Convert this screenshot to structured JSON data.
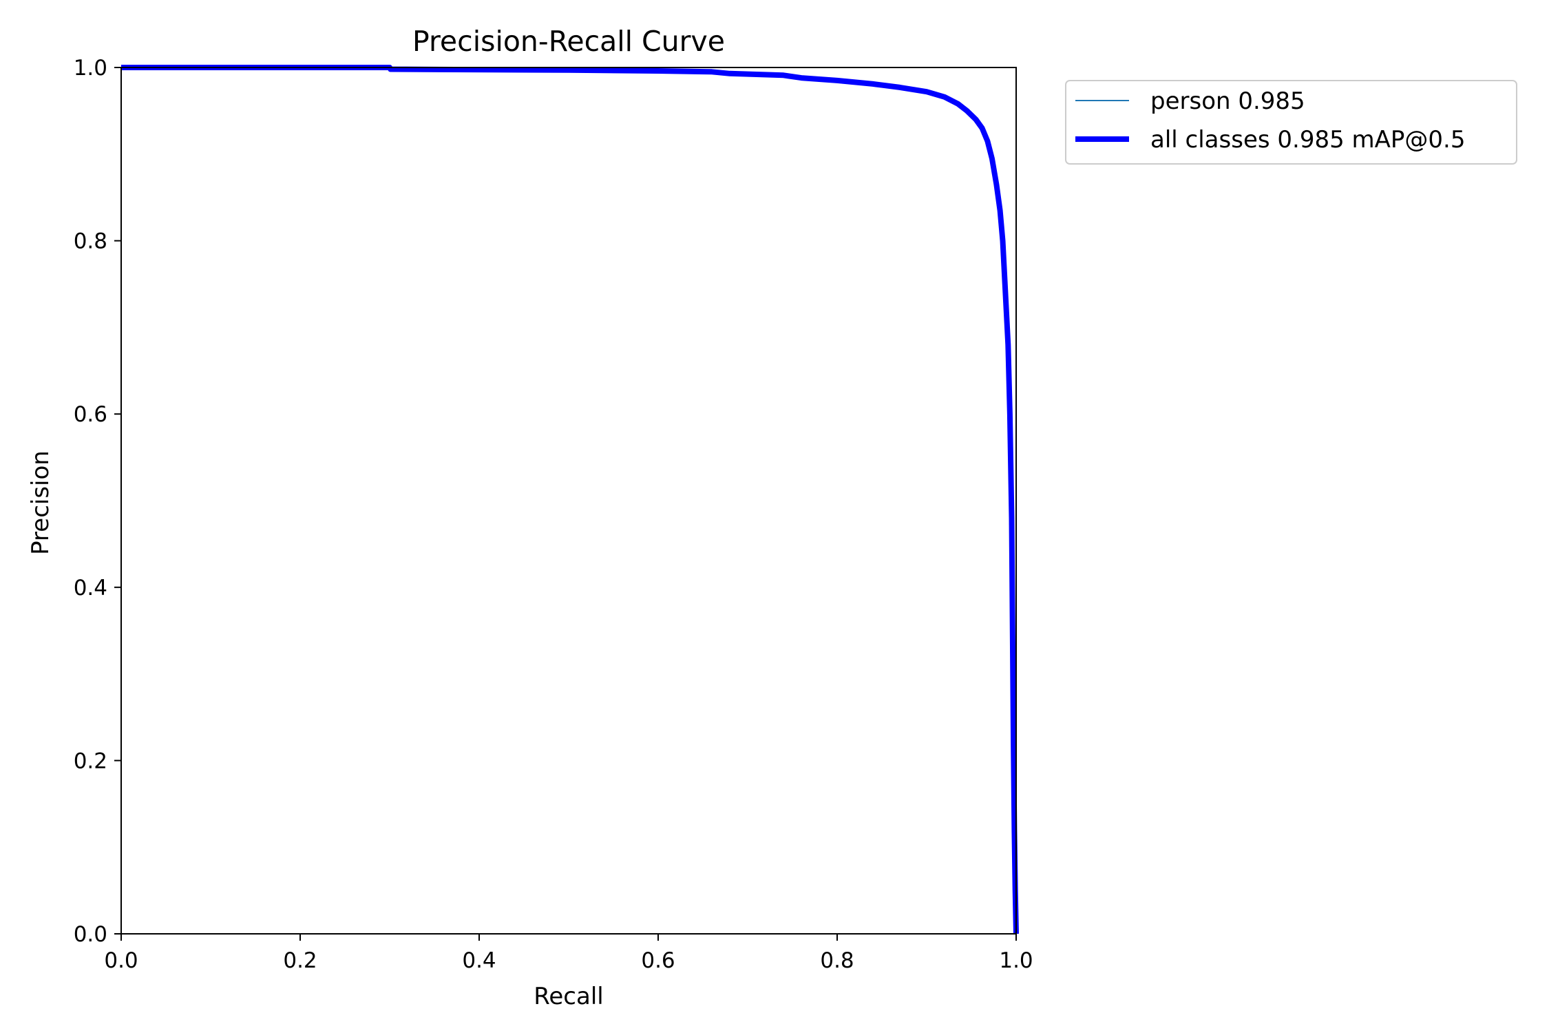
{
  "chart_data": {
    "type": "line",
    "title": "Precision-Recall Curve",
    "xlabel": "Recall",
    "ylabel": "Precision",
    "xlim": [
      0,
      1
    ],
    "ylim": [
      0,
      1
    ],
    "xticks": [
      "0.0",
      "0.2",
      "0.4",
      "0.6",
      "0.8",
      "1.0"
    ],
    "yticks": [
      "0.0",
      "0.2",
      "0.4",
      "0.6",
      "0.8",
      "1.0"
    ],
    "grid": false,
    "legend": {
      "placement": "outside-top-right"
    },
    "series": [
      {
        "name": "person 0.985",
        "color": "#1f77b4",
        "linewidth": "thin",
        "x": [
          0.0,
          0.3,
          0.301,
          0.5,
          0.6,
          0.66,
          0.68,
          0.74,
          0.76,
          0.8,
          0.84,
          0.87,
          0.9,
          0.92,
          0.935,
          0.945,
          0.955,
          0.962,
          0.968,
          0.973,
          0.978,
          0.982,
          0.985,
          0.988,
          0.991,
          0.993,
          0.995,
          0.996,
          0.997,
          0.998,
          0.999,
          1.0
        ],
        "y": [
          1.0,
          1.0,
          0.998,
          0.997,
          0.996,
          0.995,
          0.993,
          0.991,
          0.988,
          0.985,
          0.981,
          0.977,
          0.972,
          0.966,
          0.958,
          0.95,
          0.94,
          0.93,
          0.915,
          0.895,
          0.865,
          0.835,
          0.8,
          0.74,
          0.68,
          0.6,
          0.48,
          0.35,
          0.22,
          0.12,
          0.05,
          0.0
        ]
      },
      {
        "name": "all classes 0.985 mAP@0.5",
        "color": "#0000ff",
        "linewidth": "thick",
        "x": [
          0.0,
          0.3,
          0.301,
          0.5,
          0.6,
          0.66,
          0.68,
          0.74,
          0.76,
          0.8,
          0.84,
          0.87,
          0.9,
          0.92,
          0.935,
          0.945,
          0.955,
          0.962,
          0.968,
          0.973,
          0.978,
          0.982,
          0.985,
          0.988,
          0.991,
          0.993,
          0.995,
          0.996,
          0.997,
          0.998,
          0.999,
          1.0
        ],
        "y": [
          1.0,
          1.0,
          0.998,
          0.997,
          0.996,
          0.995,
          0.993,
          0.991,
          0.988,
          0.985,
          0.981,
          0.977,
          0.972,
          0.966,
          0.958,
          0.95,
          0.94,
          0.93,
          0.915,
          0.895,
          0.865,
          0.835,
          0.8,
          0.74,
          0.68,
          0.6,
          0.48,
          0.35,
          0.22,
          0.12,
          0.05,
          0.0
        ]
      }
    ]
  }
}
